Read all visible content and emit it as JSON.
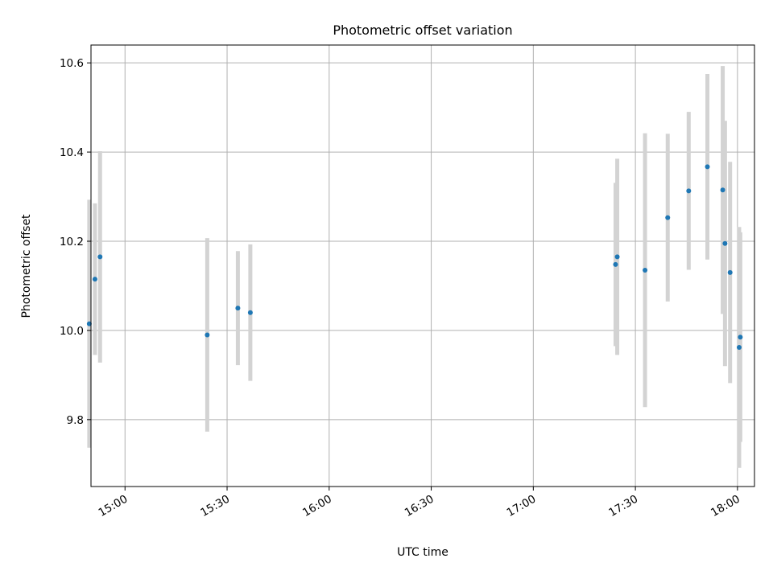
{
  "chart_data": {
    "type": "scatter",
    "title": "Photometric offset variation",
    "xlabel": "UTC time",
    "ylabel": "Photometric offset",
    "x_tick_labels": [
      "15:00",
      "15:30",
      "16:00",
      "16:30",
      "17:00",
      "17:30",
      "18:00"
    ],
    "y_tick_labels": [
      "9.8",
      "10.0",
      "10.2",
      "10.4",
      "10.6"
    ],
    "xlim": [
      "14:50",
      "18:05"
    ],
    "ylim": [
      9.65,
      10.64
    ],
    "grid": true,
    "marker_color": "#1f77b4",
    "errorbar_color": "#d3d3d3",
    "points": [
      {
        "x": "14:49:30",
        "y": 10.015,
        "yerr": 0.278
      },
      {
        "x": "14:51:10",
        "y": 10.115,
        "yerr": 0.17
      },
      {
        "x": "14:52:40",
        "y": 10.165,
        "yerr": 0.237
      },
      {
        "x": "15:24:10",
        "y": 9.99,
        "yerr": 0.217
      },
      {
        "x": "15:33:10",
        "y": 10.05,
        "yerr": 0.128
      },
      {
        "x": "15:36:50",
        "y": 10.04,
        "yerr": 0.153
      },
      {
        "x": "17:24:10",
        "y": 10.148,
        "yerr": 0.183
      },
      {
        "x": "17:24:40",
        "y": 10.165,
        "yerr": 0.22
      },
      {
        "x": "17:32:50",
        "y": 10.135,
        "yerr": 0.307
      },
      {
        "x": "17:39:30",
        "y": 10.253,
        "yerr": 0.188
      },
      {
        "x": "17:45:40",
        "y": 10.313,
        "yerr": 0.177
      },
      {
        "x": "17:51:10",
        "y": 10.367,
        "yerr": 0.208
      },
      {
        "x": "17:55:40",
        "y": 10.315,
        "yerr": 0.278
      },
      {
        "x": "17:56:20",
        "y": 10.195,
        "yerr": 0.275
      },
      {
        "x": "17:57:50",
        "y": 10.13,
        "yerr": 0.248
      },
      {
        "x": "18:00:30",
        "y": 9.962,
        "yerr": 0.27
      },
      {
        "x": "18:00:50",
        "y": 9.985,
        "yerr": 0.235
      }
    ]
  }
}
